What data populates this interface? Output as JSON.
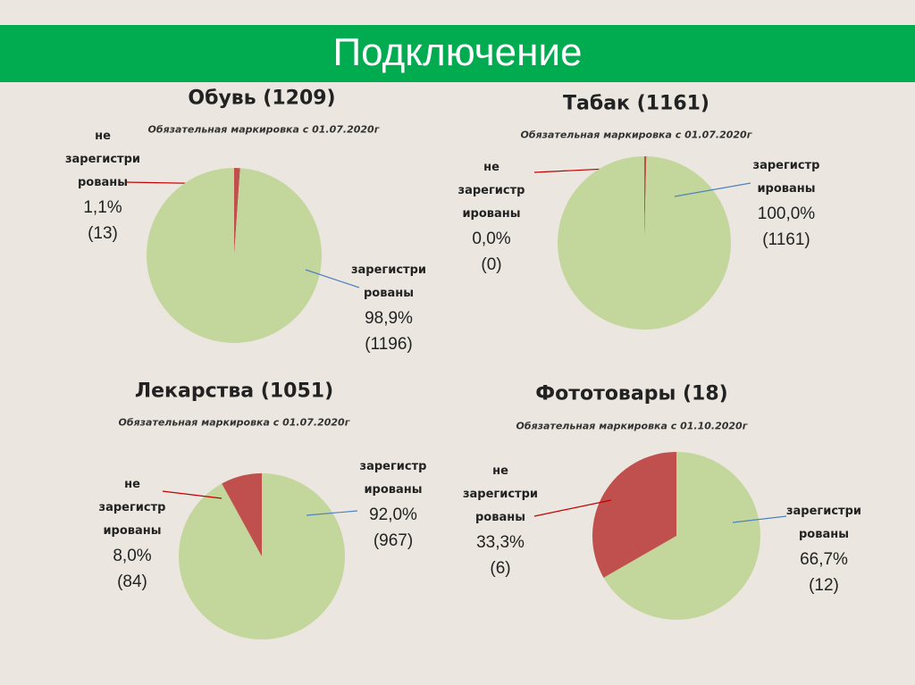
{
  "title": "Подключение",
  "colors": {
    "registered": "#c3d69b",
    "unregistered": "#c0504d",
    "bar": "#00ac4f"
  },
  "chart_data": [
    {
      "type": "pie",
      "title": "Обувь (1209)",
      "subtitle": "Обязательная маркировка с 01.07.2020г",
      "slices": [
        {
          "key": "unreg",
          "label": [
            "не",
            "зарегистри",
            "рованы"
          ],
          "percent": "1,1%",
          "count": "(13)",
          "value": 1.1
        },
        {
          "key": "reg",
          "label": [
            "зарегистри",
            "рованы"
          ],
          "percent": "98,9%",
          "count": "(1196)",
          "value": 98.9
        }
      ]
    },
    {
      "type": "pie",
      "title": "Табак (1161)",
      "subtitle": "Обязательная маркировка с 01.07.2020г",
      "slices": [
        {
          "key": "unreg",
          "label": [
            "не",
            "зарегистр",
            "ированы"
          ],
          "percent": "0,0%",
          "count": "(0)",
          "value": 0.0
        },
        {
          "key": "reg",
          "label": [
            "зарегистр",
            "ированы"
          ],
          "percent": "100,0%",
          "count": "(1161)",
          "value": 100.0
        }
      ]
    },
    {
      "type": "pie",
      "title": "Лекарства (1051)",
      "subtitle": "Обязательная маркировка с 01.07.2020г",
      "slices": [
        {
          "key": "reg",
          "label": [
            "зарегистр",
            "ированы"
          ],
          "percent": "92,0%",
          "count": "(967)",
          "value": 92.0
        },
        {
          "key": "unreg",
          "label": [
            "не",
            "зарегистр",
            "ированы"
          ],
          "percent": "8,0%",
          "count": "(84)",
          "value": 8.0
        }
      ]
    },
    {
      "type": "pie",
      "title": "Фототовары (18)",
      "subtitle": "Обязательная маркировка с 01.10.2020г",
      "slices": [
        {
          "key": "reg",
          "label": [
            "зарегистри",
            "рованы"
          ],
          "percent": "66,7%",
          "count": "(12)",
          "value": 66.7
        },
        {
          "key": "unreg",
          "label": [
            "не",
            "зарегистри",
            "рованы"
          ],
          "percent": "33,3%",
          "count": "(6)",
          "value": 33.3
        }
      ]
    }
  ]
}
